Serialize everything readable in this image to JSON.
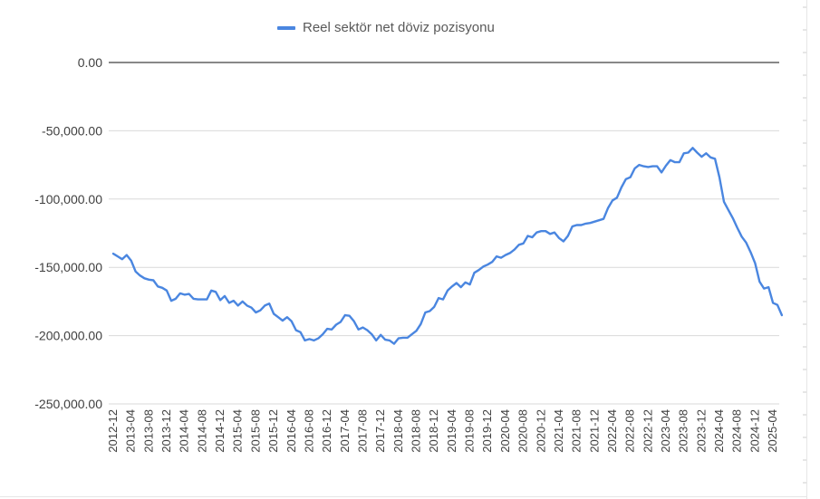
{
  "chart_data": {
    "type": "line",
    "title": "",
    "xlabel": "",
    "ylabel": "",
    "legend": {
      "position": "top",
      "entries": [
        "Reel sektör net döviz pozisyonu"
      ]
    },
    "grid": false,
    "ylim": [
      -250000,
      0
    ],
    "ytick_values": [
      0,
      -50000,
      -100000,
      -150000,
      -200000,
      -250000
    ],
    "ytick_labels": [
      "0.00",
      "-50,000.00",
      "-100,000.00",
      "-150,000.00",
      "-200,000.00",
      "-250,000.00"
    ],
    "xtick_labels": [
      "2012-12",
      "2013-04",
      "2013-08",
      "2013-12",
      "2014-04",
      "2014-08",
      "2014-12",
      "2015-04",
      "2015-08",
      "2015-12",
      "2016-04",
      "2016-08",
      "2016-12",
      "2017-04",
      "2017-08",
      "2017-12",
      "2018-04",
      "2018-08",
      "2018-12",
      "2019-04",
      "2019-08",
      "2019-12",
      "2020-04",
      "2020-08",
      "2020-12",
      "2021-04",
      "2021-08",
      "2021-12",
      "2022-04",
      "2022-08",
      "2022-12",
      "2023-04",
      "2023-08",
      "2023-12",
      "2024-04",
      "2024-08",
      "2024-12",
      "2025-04"
    ],
    "x_start": "2012-12",
    "x_end": "2025-05",
    "series": [
      {
        "name": "Reel sektör net döviz pozisyonu",
        "color": "#4a86e0",
        "values": [
          -140000,
          -142000,
          -144000,
          -141000,
          -145000,
          -153000,
          -156000,
          -158000,
          -159000,
          -159500,
          -164000,
          -165000,
          -167000,
          -174500,
          -173000,
          -169000,
          -170000,
          -169500,
          -173000,
          -173500,
          -173500,
          -173500,
          -167000,
          -168000,
          -174000,
          -171000,
          -176000,
          -174500,
          -178000,
          -175000,
          -178000,
          -179500,
          -183000,
          -181500,
          -178000,
          -176500,
          -184000,
          -186500,
          -189000,
          -186500,
          -189500,
          -196000,
          -197500,
          -203500,
          -202500,
          -203500,
          -202000,
          -199000,
          -195000,
          -195500,
          -192000,
          -190000,
          -185000,
          -185500,
          -189500,
          -195500,
          -194000,
          -196000,
          -199000,
          -203500,
          -199500,
          -203000,
          -203500,
          -206000,
          -202000,
          -201500,
          -201500,
          -199000,
          -196500,
          -191500,
          -183000,
          -182000,
          -179000,
          -172500,
          -173500,
          -167000,
          -164000,
          -161500,
          -164500,
          -161000,
          -162500,
          -154000,
          -152000,
          -149500,
          -148000,
          -146000,
          -142000,
          -143000,
          -141000,
          -139500,
          -137000,
          -133500,
          -132500,
          -127000,
          -128000,
          -124500,
          -123500,
          -123500,
          -125500,
          -124500,
          -128500,
          -131000,
          -127000,
          -120000,
          -119000,
          -119000,
          -118000,
          -117500,
          -116500,
          -115500,
          -114500,
          -106500,
          -101000,
          -99000,
          -91500,
          -85500,
          -84000,
          -77500,
          -75000,
          -76000,
          -76500,
          -76000,
          -76000,
          -80500,
          -75500,
          -71500,
          -73000,
          -73000,
          -66500,
          -66000,
          -62500,
          -66000,
          -69000,
          -66500,
          -69500,
          -70500,
          -84000,
          -102000,
          -108000,
          -114000,
          -121000,
          -127500,
          -132000,
          -139000,
          -147000,
          -160500,
          -165500,
          -164500,
          -176000,
          -177500,
          -185000
        ]
      }
    ]
  }
}
